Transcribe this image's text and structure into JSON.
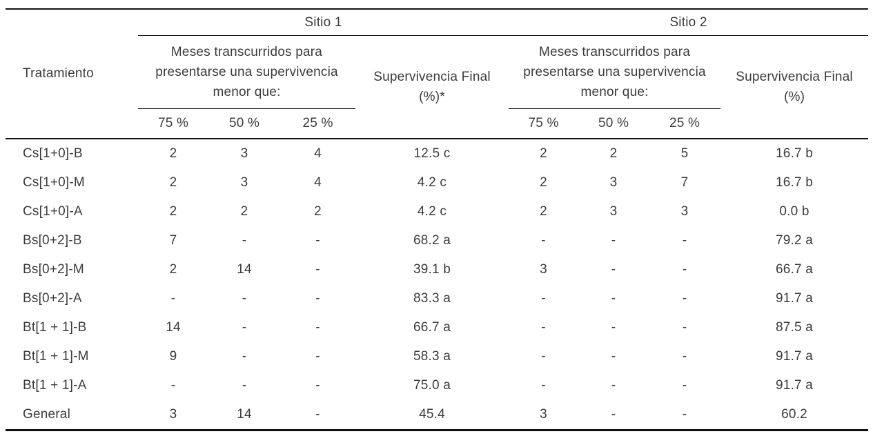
{
  "header": {
    "tratamiento": "Tratamiento",
    "sitio1": "Sitio 1",
    "sitio2": "Sitio 2",
    "meses_lines": [
      "Meses transcurridos para",
      "presentarse una supervivencia",
      "menor que:"
    ],
    "supervivencia1_lines": [
      "Supervivencia Final",
      "(%)*"
    ],
    "supervivencia2_lines": [
      "Supervivencia Final",
      "(%)"
    ],
    "thresholds": [
      "75 %",
      "50 %",
      "25 %"
    ]
  },
  "rows": [
    {
      "cells": [
        "Cs[1+0]-B",
        "2",
        "3",
        "4",
        "12.5 c",
        "2",
        "2",
        "5",
        "16.7 b"
      ]
    },
    {
      "cells": [
        "Cs[1+0]-M",
        "2",
        "3",
        "4",
        "4.2 c",
        "2",
        "3",
        "7",
        "16.7 b"
      ]
    },
    {
      "cells": [
        "Cs[1+0]-A",
        "2",
        "2",
        "2",
        "4.2 c",
        "2",
        "3",
        "3",
        "0.0 b"
      ]
    },
    {
      "cells": [
        "Bs[0+2]-B",
        "7",
        "-",
        "-",
        "68.2 a",
        "-",
        "-",
        "-",
        "79.2 a"
      ]
    },
    {
      "cells": [
        "Bs[0+2]-M",
        "2",
        "14",
        "-",
        "39.1 b",
        "3",
        "-",
        "-",
        "66.7 a"
      ]
    },
    {
      "cells": [
        "Bs[0+2]-A",
        "-",
        "-",
        "-",
        "83.3 a",
        "-",
        "-",
        "-",
        "91.7 a"
      ]
    },
    {
      "cells": [
        "Bt[1 + 1]-B",
        "14",
        "-",
        "-",
        "66.7 a",
        "-",
        "-",
        "-",
        "87.5 a"
      ]
    },
    {
      "cells": [
        "Bt[1 + 1]-M",
        "9",
        "-",
        "-",
        "58.3 a",
        "-",
        "-",
        "-",
        "91.7 a"
      ]
    },
    {
      "cells": [
        "Bt[1 + 1]-A",
        "-",
        "-",
        "-",
        "75.0 a",
        "-",
        "-",
        "-",
        "91.7 a"
      ]
    },
    {
      "cells": [
        "General",
        "3",
        "14",
        "-",
        "45.4",
        "3",
        "-",
        "-",
        "60.2"
      ]
    }
  ],
  "colors": {
    "text": "#3b3b3b",
    "rule": "#111111",
    "background": "#ffffff"
  }
}
